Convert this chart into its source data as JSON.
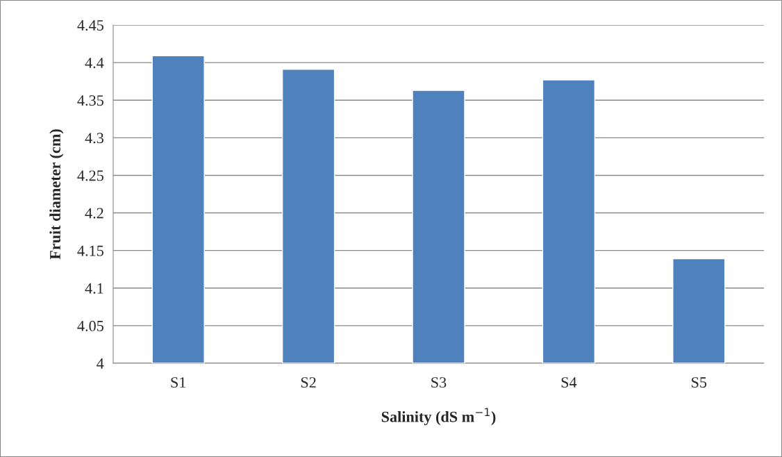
{
  "chart_data": {
    "type": "bar",
    "categories": [
      "S1",
      "S2",
      "S3",
      "S4",
      "S5"
    ],
    "values": [
      4.409,
      4.391,
      4.363,
      4.377,
      4.139
    ],
    "color": "#4f81bd",
    "xlabel": "Salinity (dS m$^{−1}$)",
    "ylabel": "Fruit diameter (cm)",
    "ylim": [
      4,
      4.45
    ],
    "yticks": [
      {
        "value": 4,
        "label": "4"
      },
      {
        "value": 4.05,
        "label": "4.05"
      },
      {
        "value": 4.1,
        "label": "4.1"
      },
      {
        "value": 4.15,
        "label": "4.15"
      },
      {
        "value": 4.2,
        "label": "4.2"
      },
      {
        "value": 4.25,
        "label": "4.25"
      },
      {
        "value": 4.3,
        "label": "4.3"
      },
      {
        "value": 4.35,
        "label": "4.35"
      },
      {
        "value": 4.4,
        "label": "4.4"
      },
      {
        "value": 4.45,
        "label": "4.45"
      }
    ],
    "grid": "y",
    "legend": false
  }
}
